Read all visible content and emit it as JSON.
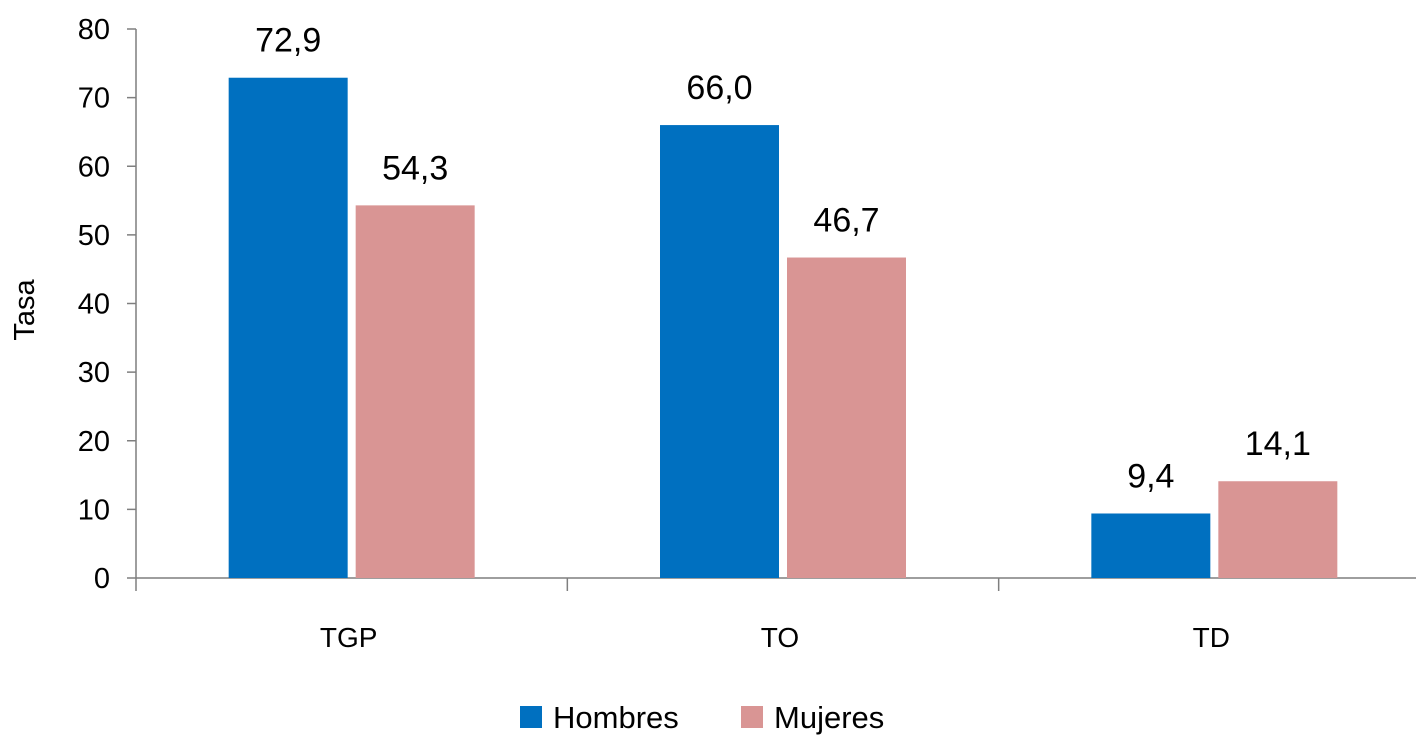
{
  "chart_data": {
    "type": "bar",
    "categories": [
      "TGP",
      "TO",
      "TD"
    ],
    "series": [
      {
        "name": "Hombres",
        "values": [
          72.9,
          66.0,
          9.4
        ],
        "labels": [
          "72,9",
          "66,0",
          "9,4"
        ],
        "color": "#0070C0"
      },
      {
        "name": "Mujeres",
        "values": [
          54.3,
          46.7,
          14.1
        ],
        "labels": [
          "54,3",
          "46,7",
          "14,1"
        ],
        "color": "#D99594"
      }
    ],
    "ylabel": "Tasa",
    "xlabel": "",
    "ylim": [
      0,
      80
    ],
    "yticks": [
      0,
      10,
      20,
      30,
      40,
      50,
      60,
      70,
      80
    ],
    "grid": false,
    "legend": "bottom-center"
  }
}
